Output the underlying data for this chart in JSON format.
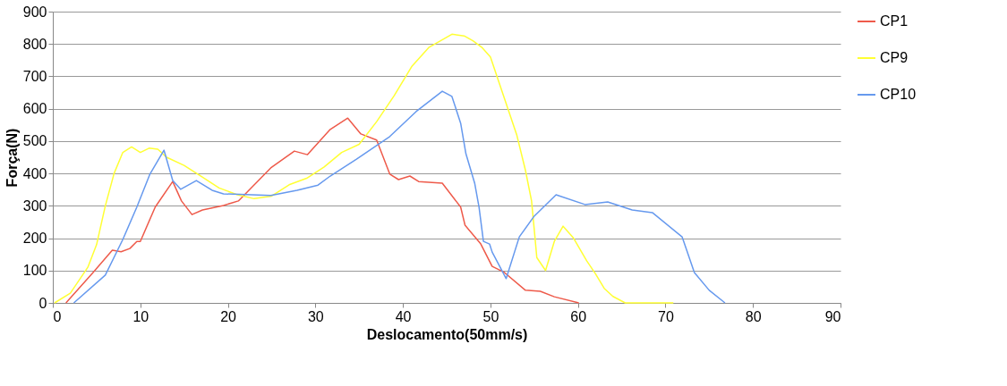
{
  "chart_data": {
    "type": "line",
    "xlabel": "Deslocamento(50mm/s)",
    "ylabel": "Força(N)",
    "xlim": [
      0,
      90
    ],
    "xticks": [
      0,
      10,
      20,
      30,
      40,
      50,
      60,
      70,
      80,
      90
    ],
    "ylim": [
      0,
      900
    ],
    "yticks": [
      0,
      100,
      200,
      300,
      400,
      500,
      600,
      700,
      800,
      900
    ],
    "grid": "y",
    "legend": "right",
    "marker": "none",
    "line_style": "solid",
    "series": [
      {
        "name": "CP1",
        "color": "#ee5a4a",
        "x": [
          1.5,
          4.6,
          6.8,
          7.8,
          8.8,
          9.6,
          10.0,
          11.7,
          13.7,
          14.7,
          15.9,
          17.1,
          19.5,
          21.2,
          24.9,
          27.6,
          29.1,
          31.7,
          33.7,
          35.2,
          37.0,
          38.5,
          39.5,
          40.8,
          41.8,
          44.5,
          46.6,
          47.1,
          48.9,
          50.2,
          51.6,
          54.0,
          55.7,
          57.3,
          60.1
        ],
        "values": [
          0,
          94,
          163,
          158,
          168,
          190,
          190,
          296,
          375,
          315,
          273,
          287,
          301,
          315,
          417,
          469,
          458,
          536,
          571,
          522,
          503,
          398,
          381,
          392,
          375,
          370,
          296,
          240,
          182,
          113,
          94,
          39,
          36,
          19,
          0
        ]
      },
      {
        "name": "CP9",
        "color": "#ffff33",
        "x": [
          0.2,
          2,
          4,
          5,
          6,
          7,
          8,
          9,
          10,
          11,
          12,
          13,
          15,
          17,
          19,
          21,
          23,
          25,
          27,
          29,
          31,
          33,
          35,
          37,
          39,
          41,
          43,
          45.6,
          47,
          48,
          49,
          50,
          51,
          52,
          53,
          54,
          54.7,
          55.1,
          55.3,
          56.3,
          57.3,
          58.3,
          59.5,
          61,
          62,
          63,
          64,
          65.4,
          70.9
        ],
        "values": [
          0,
          30,
          110,
          180,
          300,
          400,
          465,
          482,
          465,
          478,
          475,
          450,
          425,
          390,
          355,
          335,
          322,
          330,
          365,
          385,
          420,
          465,
          490,
          560,
          640,
          730,
          790,
          830,
          825,
          810,
          790,
          760,
          680,
          600,
          520,
          410,
          315,
          200,
          140,
          100,
          190,
          237,
          200,
          130,
          90,
          45,
          20,
          0,
          0
        ]
      },
      {
        "name": "CP10",
        "color": "#6699ee",
        "x": [
          2.4,
          6.0,
          8.0,
          9.6,
          11.1,
          12.7,
          13.7,
          14.6,
          16.4,
          18.2,
          19.5,
          22.8,
          24.9,
          27.9,
          30.3,
          31.7,
          34.7,
          38.5,
          41.5,
          44.5,
          45.6,
          46.6,
          47.2,
          48.2,
          48.7,
          49.2,
          49.9,
          50.2,
          51.8,
          53.3,
          55.0,
          57.5,
          60.8,
          63.4,
          66.2,
          68.5,
          71.9,
          73.3,
          75.0,
          76.8
        ],
        "values": [
          0,
          86,
          196,
          296,
          398,
          472,
          378,
          351,
          378,
          348,
          337,
          334,
          332,
          348,
          364,
          392,
          444,
          514,
          591,
          654,
          638,
          555,
          461,
          370,
          296,
          190,
          182,
          157,
          75,
          204,
          268,
          334,
          304,
          312,
          287,
          279,
          204,
          94,
          39,
          0
        ]
      }
    ]
  }
}
